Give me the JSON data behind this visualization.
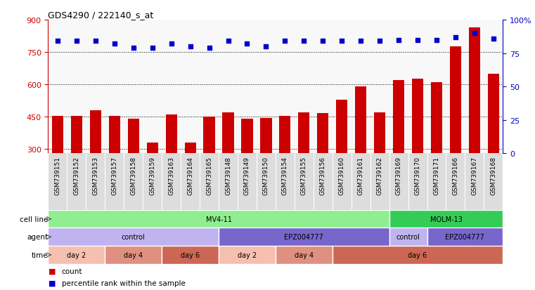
{
  "title": "GDS4290 / 222140_s_at",
  "samples": [
    "GSM739151",
    "GSM739152",
    "GSM739153",
    "GSM739157",
    "GSM739158",
    "GSM739159",
    "GSM739163",
    "GSM739164",
    "GSM739165",
    "GSM739148",
    "GSM739149",
    "GSM739150",
    "GSM739154",
    "GSM739155",
    "GSM739156",
    "GSM739160",
    "GSM739161",
    "GSM739162",
    "GSM739169",
    "GSM739170",
    "GSM739171",
    "GSM739166",
    "GSM739167",
    "GSM739168"
  ],
  "counts": [
    455,
    455,
    480,
    455,
    440,
    330,
    460,
    330,
    450,
    470,
    440,
    445,
    455,
    470,
    468,
    530,
    590,
    470,
    620,
    625,
    610,
    775,
    865,
    650
  ],
  "percentile_ranks": [
    84,
    84,
    84,
    82,
    79,
    79,
    82,
    80,
    79,
    84,
    82,
    80,
    84,
    84,
    84,
    84,
    84,
    84,
    85,
    85,
    85,
    87,
    90,
    86
  ],
  "bar_color": "#cc0000",
  "dot_color": "#0000cc",
  "ylim_left": [
    280,
    900
  ],
  "yticks_left": [
    300,
    450,
    600,
    750,
    900
  ],
  "ylim_right": [
    0,
    100
  ],
  "yticks_right": [
    0,
    25,
    50,
    75,
    100
  ],
  "grid_values": [
    300,
    450,
    600,
    750
  ],
  "cell_line_groups": [
    {
      "label": "MV4-11",
      "start": 0,
      "end": 17,
      "color": "#90ee90"
    },
    {
      "label": "MOLM-13",
      "start": 18,
      "end": 23,
      "color": "#33cc55"
    }
  ],
  "agent_groups": [
    {
      "label": "control",
      "start": 0,
      "end": 8,
      "color": "#c0b4f0"
    },
    {
      "label": "EPZ004777",
      "start": 9,
      "end": 17,
      "color": "#7766cc"
    },
    {
      "label": "control",
      "start": 18,
      "end": 19,
      "color": "#c0b4f0"
    },
    {
      "label": "EPZ004777",
      "start": 20,
      "end": 23,
      "color": "#7766cc"
    }
  ],
  "time_groups": [
    {
      "label": "day 2",
      "start": 0,
      "end": 2,
      "color": "#f5c0b0"
    },
    {
      "label": "day 4",
      "start": 3,
      "end": 5,
      "color": "#e09080"
    },
    {
      "label": "day 6",
      "start": 6,
      "end": 8,
      "color": "#cc6655"
    },
    {
      "label": "day 2",
      "start": 9,
      "end": 11,
      "color": "#f5c0b0"
    },
    {
      "label": "day 4",
      "start": 12,
      "end": 14,
      "color": "#e09080"
    },
    {
      "label": "day 6",
      "start": 15,
      "end": 23,
      "color": "#cc6655"
    }
  ],
  "legend_count_label": "count",
  "legend_pct_label": "percentile rank within the sample",
  "left_axis_color": "#cc0000",
  "right_axis_color": "#0000cc",
  "background_color": "#ffffff",
  "bar_width": 0.6,
  "plot_bg_color": "#f8f8f8",
  "xticklabel_bg_color": "#dddddd"
}
